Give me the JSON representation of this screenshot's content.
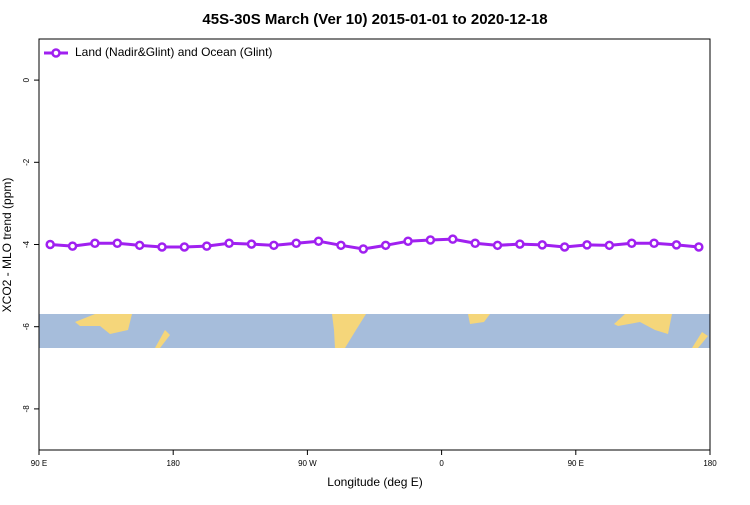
{
  "chart_data": {
    "type": "line",
    "title": "45S-30S March (Ver 10)   2015-01-01 to 2020-12-18",
    "x_label": "Longitude (deg E)",
    "y_label": "XCO2 - MLO trend (ppm)",
    "x": [
      97.5,
      112.5,
      127.5,
      142.5,
      157.5,
      172.5,
      187.5,
      202.5,
      217.5,
      232.5,
      247.5,
      262.5,
      277.5,
      292.5,
      307.5,
      322.5,
      337.5,
      352.5,
      367.5,
      382.5,
      397.5,
      412.5,
      427.5,
      442.5,
      457.5,
      472.5,
      487.5,
      502.5,
      517.5,
      532.5
    ],
    "series": [
      {
        "name": "Land (Nadir&Glint) and Ocean (Glint)",
        "color": "#a020f0",
        "values": [
          -4.0,
          -4.04,
          -3.97,
          -3.97,
          -4.02,
          -4.06,
          -4.06,
          -4.04,
          -3.97,
          -3.99,
          -4.02,
          -3.97,
          -3.92,
          -4.02,
          -4.11,
          -4.02,
          -3.92,
          -3.89,
          -3.87,
          -3.97,
          -4.02,
          -3.99,
          -4.01,
          -4.06,
          -4.01,
          -4.02,
          -3.97,
          -3.97,
          -4.01,
          -4.06
        ]
      }
    ],
    "xlim": [
      90,
      540
    ],
    "xticks": [
      {
        "value": 90,
        "label": "90 E"
      },
      180,
      {
        "value": 270,
        "label": "90 W"
      },
      {
        "value": 360,
        "label": "0"
      },
      {
        "value": 450,
        "label": "90 E"
      },
      {
        "value": 540,
        "label": "180"
      }
    ],
    "ylim": [
      -9,
      1
    ],
    "yticks": [
      0,
      -2,
      -4,
      -6,
      -8
    ],
    "legend": "top-left"
  }
}
